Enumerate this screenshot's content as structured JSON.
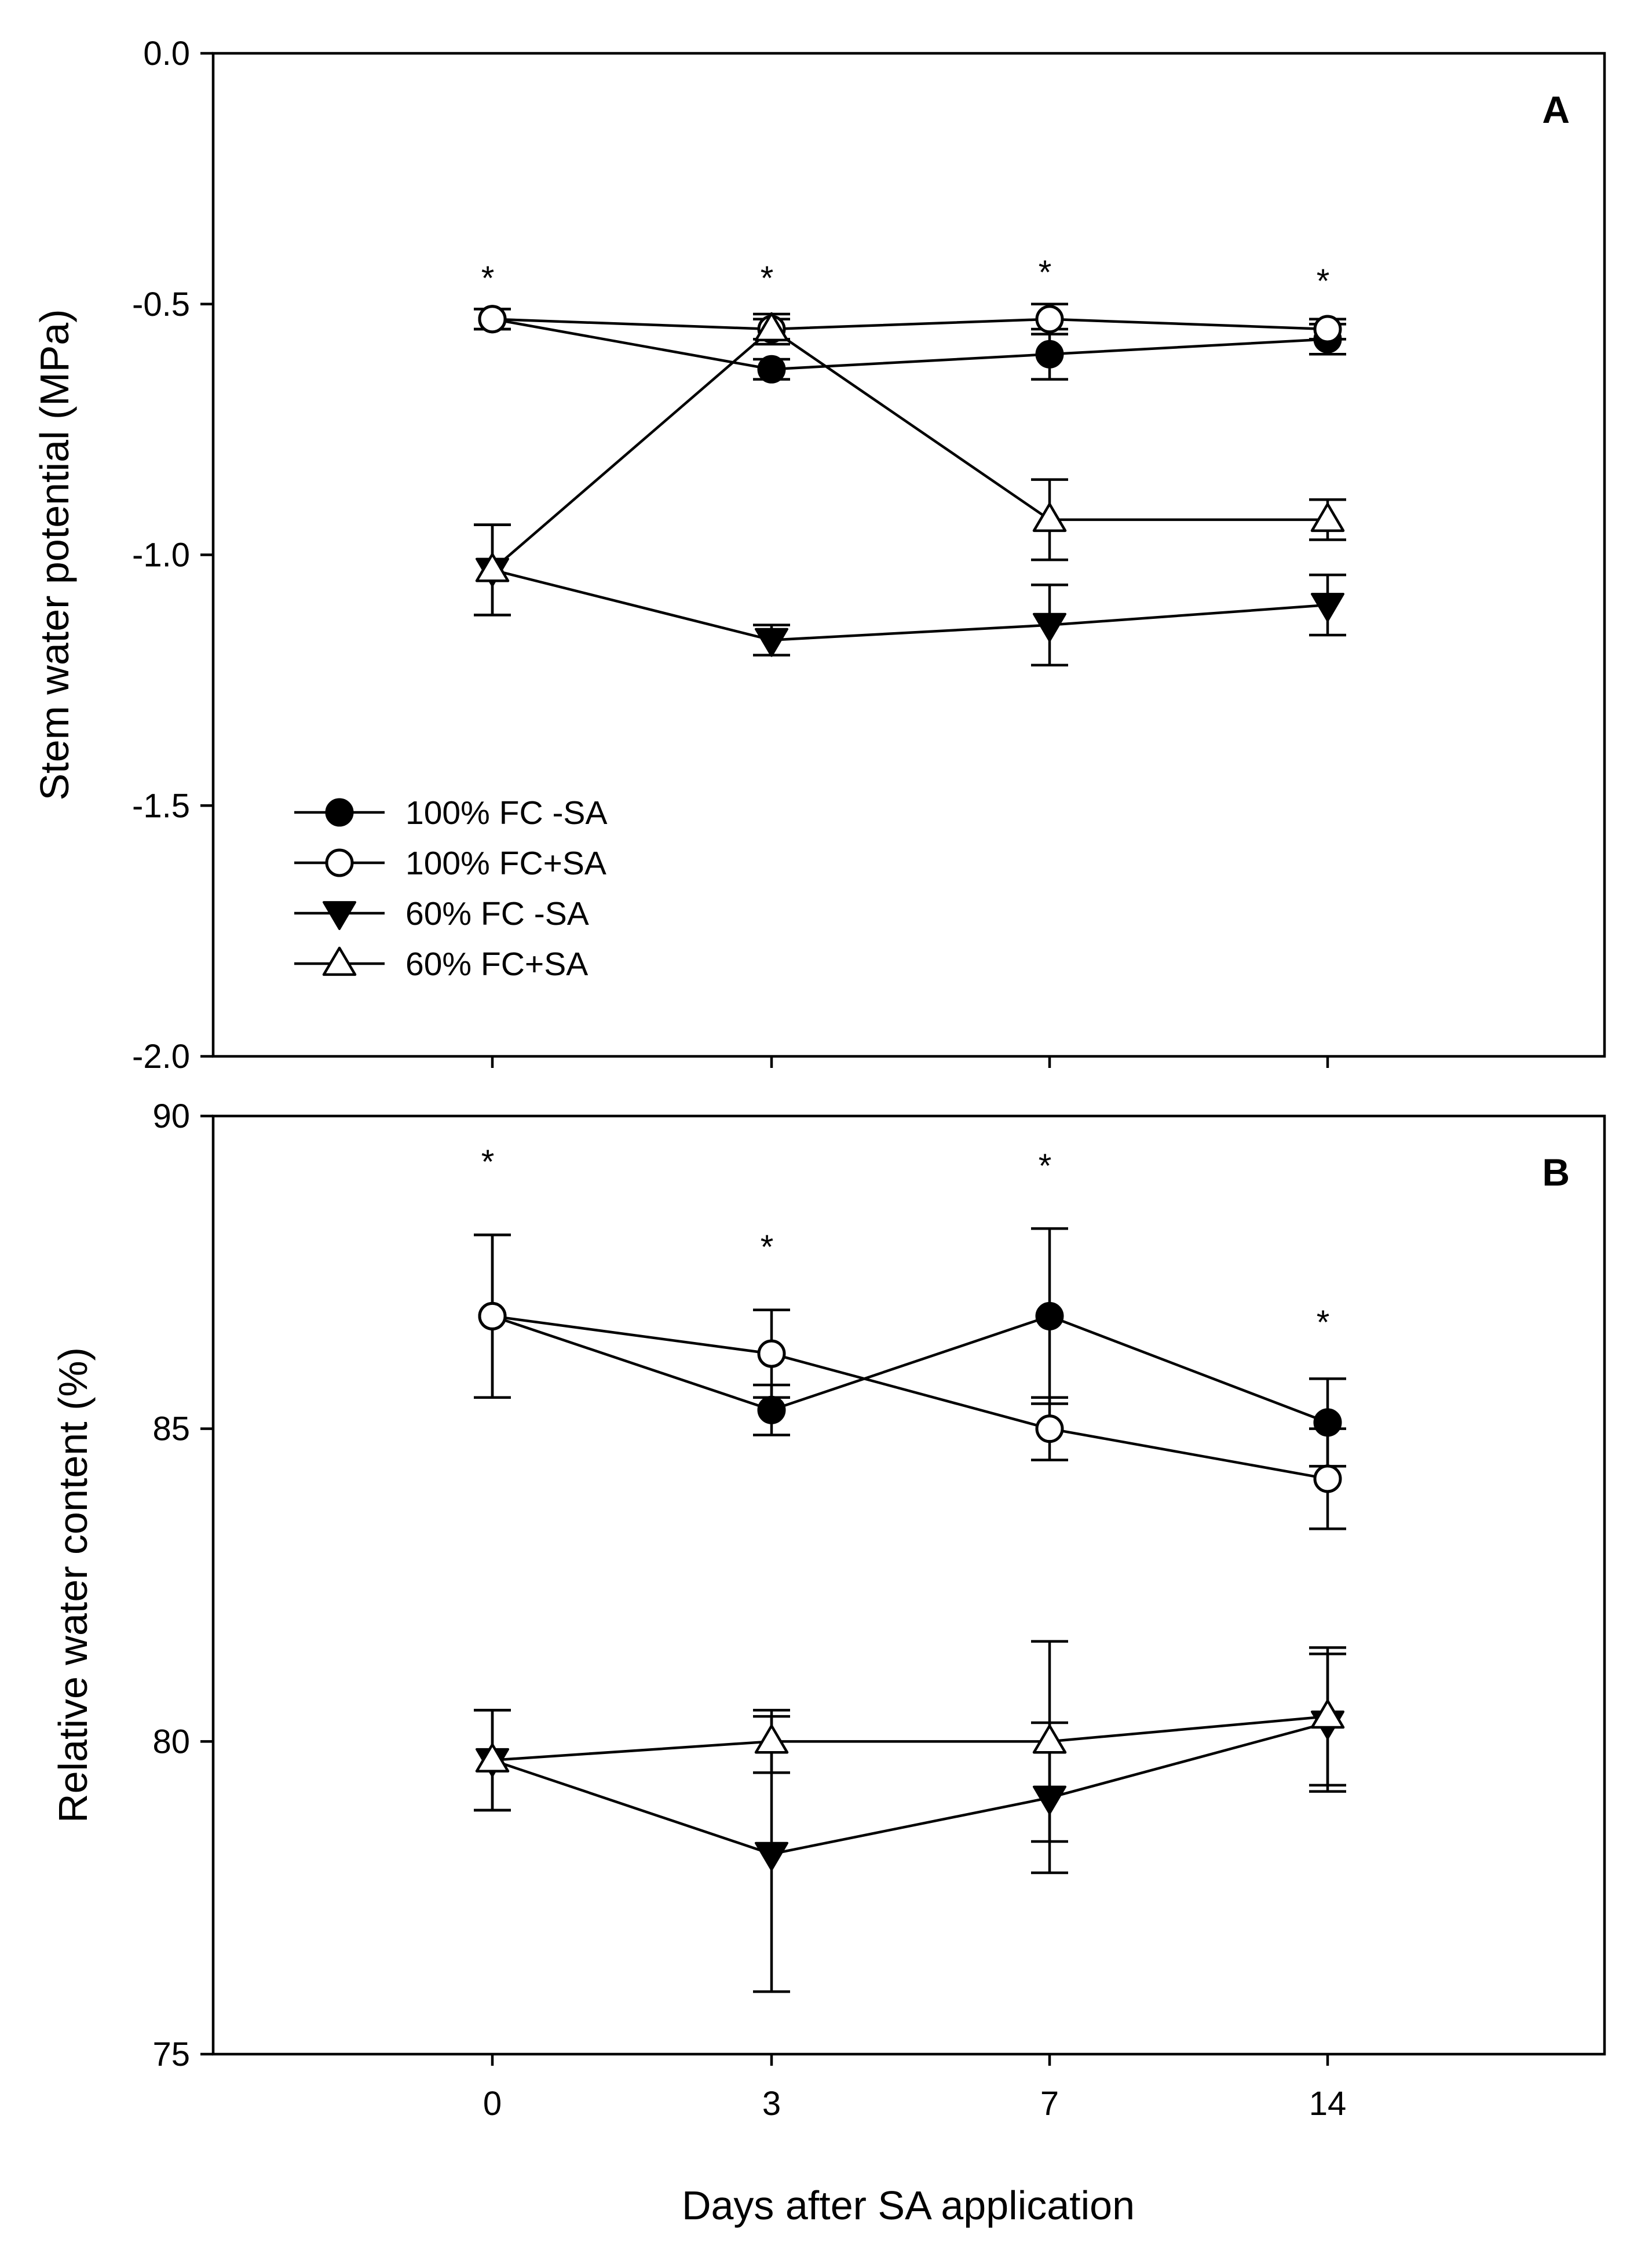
{
  "chart_data": [
    {
      "panel": "A",
      "type": "line",
      "ylabel": "Stem water potential (MPa)",
      "xlabel": "",
      "ylim": [
        -2.0,
        0.0
      ],
      "yticks": [
        0.0,
        -0.5,
        -1.0,
        -1.5,
        -2.0
      ],
      "ytick_labels": [
        "0.0",
        "-0.5",
        "-1.0",
        "-1.5",
        "-2.0"
      ],
      "x": [
        0,
        3,
        7,
        14
      ],
      "legend_position": "lower-left",
      "series": [
        {
          "name": "100% FC -SA",
          "marker": "filled-circle",
          "values": [
            -0.53,
            -0.63,
            -0.6,
            -0.57
          ],
          "errors": [
            0.02,
            0.02,
            0.05,
            0.03
          ]
        },
        {
          "name": "100% FC+SA",
          "marker": "open-circle",
          "values": [
            -0.53,
            -0.55,
            -0.53,
            -0.55
          ],
          "errors": [
            0.02,
            0.02,
            0.03,
            0.02
          ]
        },
        {
          "name": "60% FC -SA",
          "marker": "filled-triangle-down",
          "values": [
            -1.03,
            -1.17,
            -1.14,
            -1.1
          ],
          "errors": [
            0.09,
            0.03,
            0.08,
            0.06
          ]
        },
        {
          "name": "60% FC+SA",
          "marker": "open-triangle-up",
          "values": [
            -1.03,
            -0.55,
            -0.93,
            -0.93
          ],
          "errors": [
            0.09,
            0.03,
            0.08,
            0.04
          ]
        }
      ],
      "significance": {
        "marker": "*",
        "at_x": [
          0,
          3,
          7,
          14
        ]
      }
    },
    {
      "panel": "B",
      "type": "line",
      "ylabel": "Relative water content (%)",
      "xlabel": "Days after SA application",
      "ylim": [
        75,
        90
      ],
      "yticks": [
        90,
        85,
        80,
        75
      ],
      "ytick_labels": [
        "90",
        "85",
        "80",
        "75"
      ],
      "x": [
        0,
        3,
        7,
        14
      ],
      "xtick_labels": [
        "0",
        "3",
        "7",
        "14"
      ],
      "series": [
        {
          "name": "100% FC -SA",
          "marker": "filled-circle",
          "values": [
            86.8,
            85.3,
            86.8,
            85.1
          ],
          "errors": [
            1.3,
            0.4,
            1.4,
            0.7
          ]
        },
        {
          "name": "100% FC+SA",
          "marker": "open-circle",
          "values": [
            86.8,
            86.2,
            85.0,
            84.2
          ],
          "errors": [
            1.3,
            0.7,
            0.5,
            0.8
          ]
        },
        {
          "name": "60% FC -SA",
          "marker": "filled-triangle-down",
          "values": [
            79.7,
            78.2,
            79.1,
            80.3
          ],
          "errors": [
            0.8,
            2.2,
            1.2,
            1.1
          ]
        },
        {
          "name": "60% FC+SA",
          "marker": "open-triangle-up",
          "values": [
            79.7,
            80.0,
            80.0,
            80.4
          ],
          "errors": [
            0.8,
            0.5,
            1.6,
            1.1
          ]
        }
      ],
      "significance": {
        "marker": "*",
        "at_x": [
          0,
          3,
          7,
          14
        ]
      }
    }
  ],
  "colors": {
    "ink": "#000000",
    "background": "#ffffff"
  }
}
